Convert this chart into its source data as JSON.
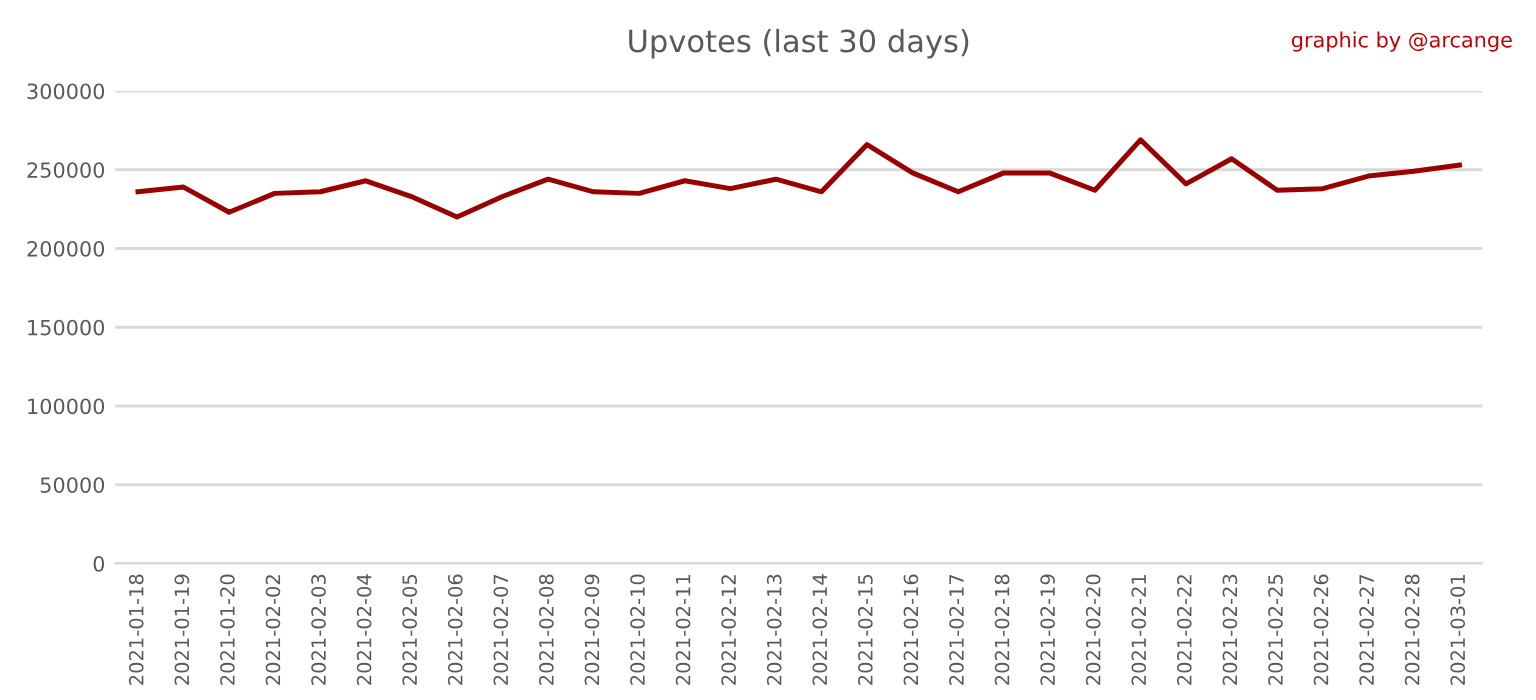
{
  "chart_data": {
    "type": "line",
    "title": "Upvotes (last 30 days)",
    "annotations": [
      "graphic by @arcange"
    ],
    "categories": [
      "2021-01-18",
      "2021-01-19",
      "2021-01-20",
      "2021-02-02",
      "2021-02-03",
      "2021-02-04",
      "2021-02-05",
      "2021-02-06",
      "2021-02-07",
      "2021-02-08",
      "2021-02-09",
      "2021-02-10",
      "2021-02-11",
      "2021-02-12",
      "2021-02-13",
      "2021-02-14",
      "2021-02-15",
      "2021-02-16",
      "2021-02-17",
      "2021-02-18",
      "2021-02-19",
      "2021-02-20",
      "2021-02-21",
      "2021-02-22",
      "2021-02-23",
      "2021-02-25",
      "2021-02-26",
      "2021-02-27",
      "2021-02-28",
      "2021-03-01"
    ],
    "series": [
      {
        "color": "#990000",
        "values": [
          236000,
          239000,
          223000,
          235000,
          236000,
          243000,
          233000,
          220000,
          233000,
          244000,
          236000,
          235000,
          243000,
          238000,
          244000,
          236000,
          266000,
          248000,
          236000,
          248000,
          248000,
          237000,
          269000,
          241000,
          257000,
          237000,
          238000,
          246000,
          249000,
          253000
        ]
      }
    ],
    "ylim": [
      0,
      300000
    ],
    "yticks": [
      0,
      50000,
      100000,
      150000,
      200000,
      250000,
      300000
    ],
    "grid": "y",
    "legend": false,
    "marker": "none",
    "line_style": "solid"
  }
}
